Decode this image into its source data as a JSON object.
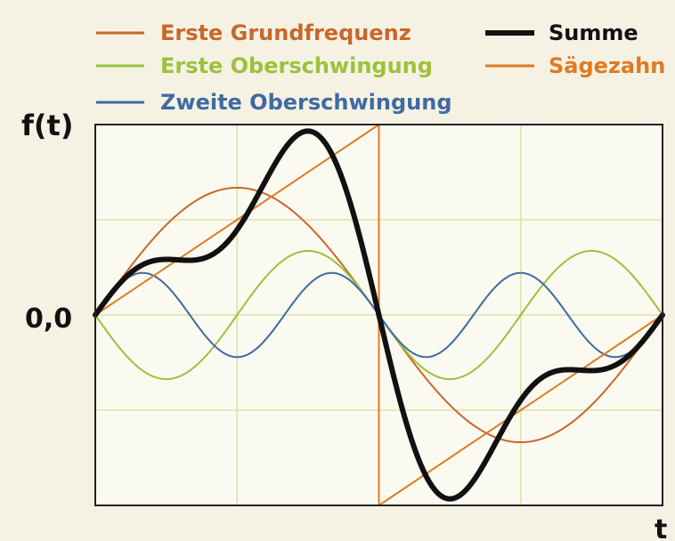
{
  "chart_data": {
    "type": "line",
    "ylabel": "f(t)",
    "xlabel": "t",
    "y_tick_labels": [
      "0,0"
    ],
    "grid": true,
    "xlim": [
      0,
      2
    ],
    "ylim": [
      -1.9,
      1.9
    ],
    "legend_placement": "top",
    "series": [
      {
        "name": "Erste Grundfrequenz",
        "color": "#c8672a",
        "function": "sin(pi*t)",
        "amplitude": 1.27
      },
      {
        "name": "Erste Oberschwingung",
        "color": "#9cc23a",
        "function": "-sin(2*pi*t)",
        "amplitude": 0.64
      },
      {
        "name": "Zweite Oberschwingung",
        "color": "#3f6aa3",
        "function": "sin(3*pi*t)",
        "amplitude": 0.42
      },
      {
        "name": "Summe",
        "color": "#111111",
        "function": "sum of harmonics",
        "amplitude": null
      },
      {
        "name": "Sägezahn",
        "color": "#e07a20",
        "function": "sawtooth, rises to peak at t=1 then drops",
        "amplitude": 1.9
      }
    ]
  }
}
